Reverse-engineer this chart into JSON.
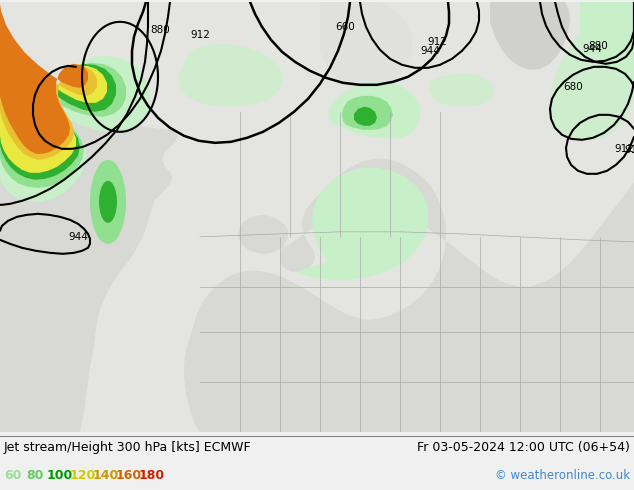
{
  "title_left": "Jet stream/Height 300 hPa [kts] ECMWF",
  "title_right": "Fr 03-05-2024 12:00 UTC (06+54)",
  "copyright": "© weatheronline.co.uk",
  "legend_values": [
    60,
    80,
    100,
    120,
    140,
    160,
    180
  ],
  "legend_colors_text": [
    "#99dd99",
    "#66cc66",
    "#009900",
    "#cccc00",
    "#cc9900",
    "#cc6600",
    "#cc2200"
  ],
  "bg_color": "#f0f0f0",
  "map_land_color": "#d0d0cc",
  "map_sea_color": "#e8e8e8",
  "map_green_land": "#c8e8c0",
  "wind_colors": {
    "60": "#c8f0c8",
    "80": "#90e090",
    "100": "#30b030",
    "120": "#e8e840",
    "140": "#e8c030",
    "160": "#e07818",
    "180": "#d03010"
  },
  "contour_color": "#000000",
  "figsize": [
    6.34,
    4.9
  ],
  "dpi": 100
}
